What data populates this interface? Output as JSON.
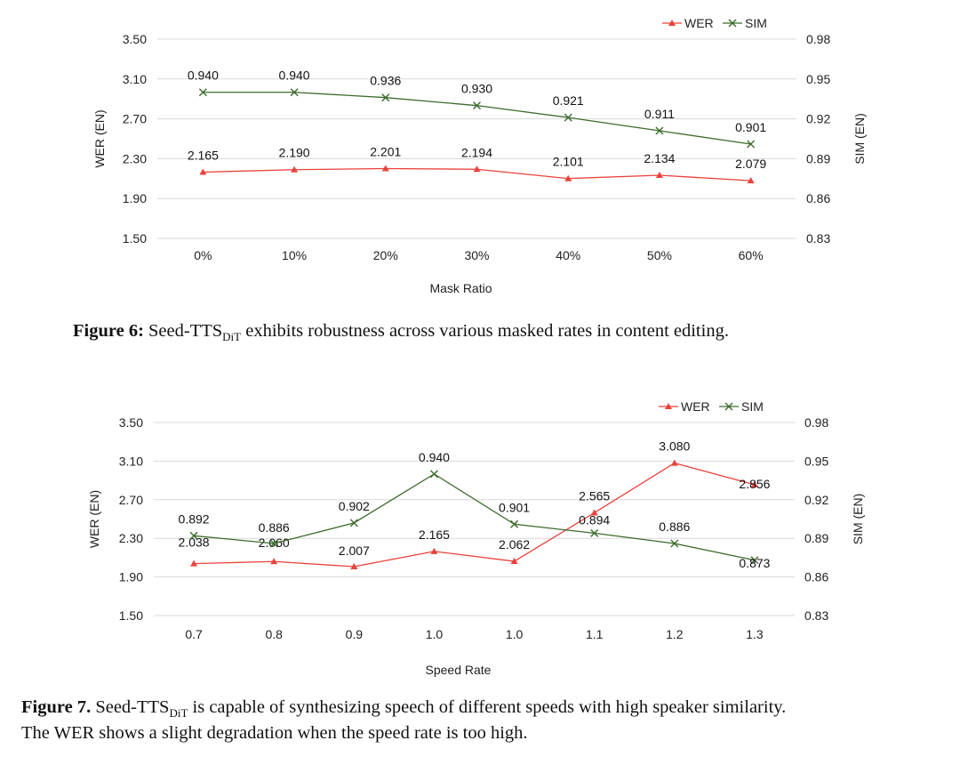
{
  "colors": {
    "wer": "#e8423b",
    "sim": "#3d6b2d",
    "grid": "#d9d9d9"
  },
  "figure6": {
    "caption_label": "Figure 6:",
    "caption_pre": " Seed-TTS",
    "caption_sub": "DiT",
    "caption_post": " exhibits robustness across various masked rates in content editing."
  },
  "figure7": {
    "caption_label": "Figure 7.",
    "caption_pre": " Seed-TTS",
    "caption_sub": "DiT",
    "caption_post": " is capable of synthesizing speech of different speeds with high speaker similarity.",
    "caption_line2": "The WER shows a slight degradation when the speed rate is too high."
  },
  "chart_data": [
    {
      "type": "line",
      "xlabel": "Mask Ratio",
      "ylabel": "WER (EN)",
      "y2label": "SIM (EN)",
      "categories": [
        "0%",
        "10%",
        "20%",
        "30%",
        "40%",
        "50%",
        "60%"
      ],
      "ylim": [
        1.5,
        3.5
      ],
      "yticks": [
        "3.50",
        "3.10",
        "2.70",
        "2.30",
        "1.90",
        "1.50"
      ],
      "y2lim": [
        0.83,
        0.98
      ],
      "y2ticks": [
        "0.98",
        "0.95",
        "0.92",
        "0.89",
        "0.86",
        "0.83"
      ],
      "grid": true,
      "legend": "top-right",
      "series": [
        {
          "name": "WER",
          "axis": "left",
          "marker": "triangle",
          "values": [
            2.165,
            2.19,
            2.201,
            2.194,
            2.101,
            2.134,
            2.079
          ],
          "labels": [
            "2.165",
            "2.190",
            "2.201",
            "2.194",
            "2.101",
            "2.134",
            "2.079"
          ]
        },
        {
          "name": "SIM",
          "axis": "right",
          "marker": "x",
          "values": [
            0.94,
            0.94,
            0.936,
            0.93,
            0.921,
            0.911,
            0.901
          ],
          "labels": [
            "0.940",
            "0.940",
            "0.936",
            "0.930",
            "0.921",
            "0.911",
            "0.901"
          ]
        }
      ]
    },
    {
      "type": "line",
      "xlabel": "Speed Rate",
      "ylabel": "WER (EN)",
      "y2label": "SIM (EN)",
      "categories": [
        "0.7",
        "0.8",
        "0.9",
        "1.0",
        "1.0",
        "1.1",
        "1.2",
        "1.3"
      ],
      "ylim": [
        1.5,
        3.5
      ],
      "yticks": [
        "3.50",
        "3.10",
        "2.70",
        "2.30",
        "1.90",
        "1.50"
      ],
      "y2lim": [
        0.83,
        0.98
      ],
      "y2ticks": [
        "0.98",
        "0.95",
        "0.92",
        "0.89",
        "0.86",
        "0.83"
      ],
      "grid": true,
      "legend": "top-right",
      "series": [
        {
          "name": "WER",
          "axis": "left",
          "marker": "triangle",
          "values": [
            2.038,
            2.06,
            2.007,
            2.165,
            2.062,
            2.565,
            3.08,
            2.856
          ],
          "labels": [
            "2.038",
            "2.060",
            "2.007",
            "2.165",
            "2.062",
            "2.565",
            "3.080",
            "2.856"
          ]
        },
        {
          "name": "SIM",
          "axis": "right",
          "marker": "x",
          "values": [
            0.892,
            0.886,
            0.902,
            0.94,
            0.901,
            0.894,
            0.886,
            0.873
          ],
          "labels": [
            "0.892",
            "0.886",
            "0.902",
            "0.940",
            "0.901",
            "0.894",
            "0.886",
            "0.873"
          ]
        }
      ]
    }
  ]
}
